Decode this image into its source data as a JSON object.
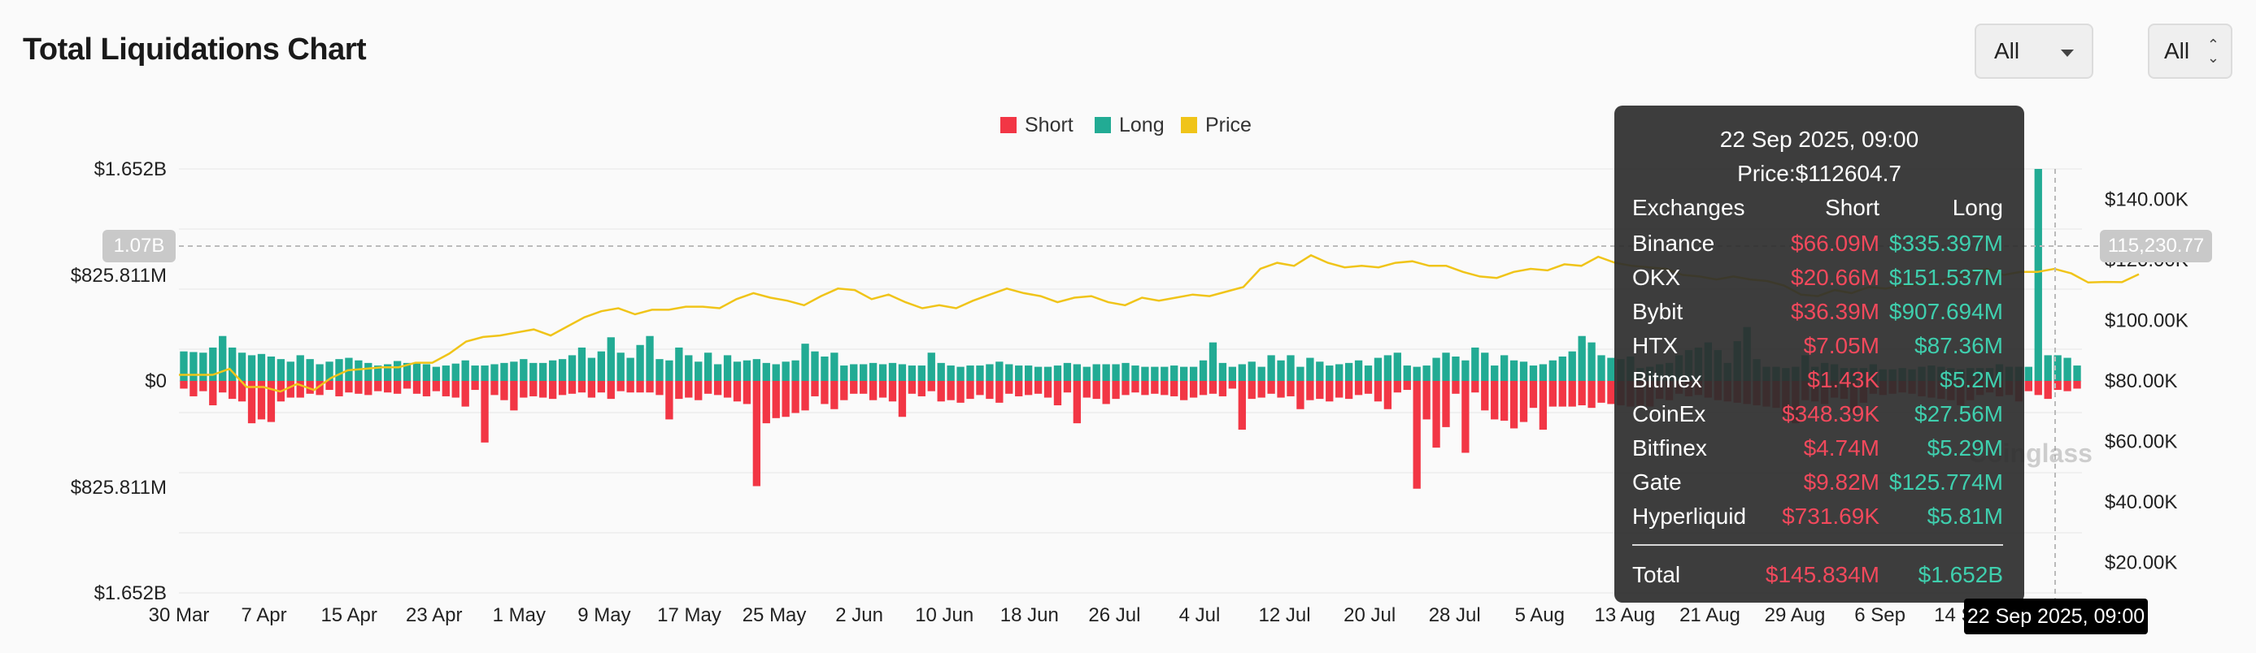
{
  "header": {
    "title": "Total Liquidations Chart"
  },
  "controls": {
    "filter1": "All",
    "filter2": "All"
  },
  "watermark": "Coinglass",
  "cursor": {
    "price_label": "115,230.77",
    "left_label": "1.07B",
    "x_label": "22 Sep 2025, 09:00"
  },
  "colors": {
    "short": "#f23645",
    "long": "#22ab94",
    "price": "#f0c419"
  },
  "tooltip": {
    "date": "22 Sep 2025, 09:00",
    "price": "Price:$112604.7",
    "headers": {
      "exchange": "Exchanges",
      "short": "Short",
      "long": "Long"
    },
    "rows": [
      {
        "exchange": "Binance",
        "short": "$66.09M",
        "long": "$335.397M"
      },
      {
        "exchange": "OKX",
        "short": "$20.66M",
        "long": "$151.537M"
      },
      {
        "exchange": "Bybit",
        "short": "$36.39M",
        "long": "$907.694M"
      },
      {
        "exchange": "HTX",
        "short": "$7.05M",
        "long": "$87.36M"
      },
      {
        "exchange": "Bitmex",
        "short": "$1.43K",
        "long": "$5.2M"
      },
      {
        "exchange": "CoinEx",
        "short": "$348.39K",
        "long": "$27.56M"
      },
      {
        "exchange": "Bitfinex",
        "short": "$4.74M",
        "long": "$5.29M"
      },
      {
        "exchange": "Gate",
        "short": "$9.82M",
        "long": "$125.774M"
      },
      {
        "exchange": "Hyperliquid",
        "short": "$731.69K",
        "long": "$5.81M"
      }
    ],
    "total": {
      "label": "Total",
      "short": "$145.834M",
      "long": "$1.652B"
    }
  },
  "chart_data": {
    "type": "bar",
    "legend": [
      "Short",
      "Long",
      "Price"
    ],
    "legend_position": "top-center",
    "grid": true,
    "y_left": {
      "ticks": [
        "$1.652B",
        "$825.811M",
        "$0",
        "$825.811M",
        "$1.652B"
      ],
      "range_musd": [
        -1652,
        1652
      ]
    },
    "y_right": {
      "ticks": [
        "$140.00K",
        "$120.00K",
        "$100.00K",
        "$80.00K",
        "$60.00K",
        "$40.00K",
        "$20.00K"
      ],
      "range": [
        10000,
        150000
      ]
    },
    "x_ticks": [
      "30 Mar",
      "7 Apr",
      "15 Apr",
      "23 Apr",
      "1 May",
      "9 May",
      "17 May",
      "25 May",
      "2 Jun",
      "10 Jun",
      "18 Jun",
      "26 Jul",
      "4 Jul",
      "12 Jul",
      "20 Jul",
      "28 Jul",
      "5 Aug",
      "13 Aug",
      "21 Aug",
      "29 Aug",
      "6 Sep",
      "14 Sep"
    ],
    "x_range": [
      "2025-03-30",
      "2025-09-25"
    ],
    "series": [
      {
        "name": "Long",
        "unit": "M USD",
        "values": [
          230,
          225,
          220,
          260,
          350,
          260,
          220,
          200,
          210,
          190,
          170,
          150,
          200,
          170,
          130,
          150,
          170,
          180,
          160,
          140,
          120,
          130,
          155,
          140,
          140,
          130,
          110,
          120,
          135,
          160,
          120,
          120,
          130,
          140,
          150,
          170,
          140,
          140,
          160,
          170,
          200,
          260,
          180,
          230,
          340,
          220,
          180,
          280,
          350,
          170,
          160,
          260,
          200,
          150,
          220,
          130,
          200,
          150,
          160,
          170,
          140,
          130,
          150,
          160,
          290,
          230,
          190,
          220,
          120,
          130,
          130,
          140,
          130,
          140,
          130,
          120,
          120,
          220,
          140,
          120,
          110,
          120,
          120,
          130,
          150,
          130,
          120,
          120,
          110,
          110,
          120,
          140,
          130,
          110,
          130,
          130,
          130,
          140,
          120,
          110,
          110,
          110,
          120,
          110,
          110,
          160,
          300,
          140,
          110,
          130,
          150,
          110,
          200,
          160,
          200,
          110,
          180,
          150,
          120,
          130,
          140,
          160,
          120,
          180,
          200,
          220,
          120,
          110,
          120,
          180,
          220,
          190,
          160,
          260,
          220,
          120,
          200,
          160,
          150,
          120,
          130,
          160,
          190,
          230,
          350,
          300,
          200,
          180,
          170,
          190,
          100,
          110,
          130,
          140,
          200,
          240,
          260,
          300,
          240,
          140,
          310,
          420,
          170,
          110,
          110,
          100,
          110,
          200,
          110,
          140,
          130,
          100,
          100,
          100,
          130,
          90,
          90,
          100,
          90,
          110,
          120,
          110,
          100,
          90,
          100,
          100,
          100,
          130,
          110,
          110,
          110,
          1652,
          200,
          200,
          180,
          120
        ]
      },
      {
        "name": "Short",
        "unit": "M USD",
        "values": [
          60,
          120,
          80,
          190,
          90,
          140,
          160,
          330,
          300,
          320,
          160,
          130,
          130,
          100,
          110,
          70,
          120,
          90,
          100,
          110,
          80,
          90,
          100,
          60,
          100,
          120,
          80,
          120,
          130,
          200,
          70,
          480,
          110,
          150,
          230,
          130,
          120,
          130,
          140,
          110,
          100,
          90,
          130,
          90,
          140,
          80,
          90,
          90,
          90,
          110,
          300,
          140,
          130,
          150,
          100,
          110,
          130,
          160,
          180,
          820,
          330,
          290,
          280,
          250,
          230,
          120,
          180,
          220,
          150,
          100,
          100,
          150,
          130,
          160,
          280,
          100,
          120,
          80,
          160,
          150,
          170,
          140,
          110,
          140,
          170,
          100,
          120,
          110,
          100,
          130,
          190,
          90,
          330,
          130,
          140,
          180,
          140,
          110,
          90,
          110,
          100,
          110,
          120,
          150,
          130,
          110,
          100,
          120,
          60,
          380,
          140,
          130,
          100,
          130,
          120,
          220,
          150,
          140,
          160,
          130,
          140,
          110,
          100,
          160,
          220,
          90,
          70,
          840,
          300,
          520,
          360,
          100,
          560,
          90,
          230,
          300,
          310,
          370,
          320,
          210,
          380,
          200,
          200,
          200,
          190,
          210,
          170,
          180,
          190,
          200,
          190,
          200,
          140,
          150,
          100,
          120,
          110,
          130,
          150,
          160,
          170,
          180,
          190,
          200,
          210,
          270,
          330,
          150,
          160,
          180,
          130,
          140,
          250,
          170,
          100,
          110,
          100,
          90,
          100,
          120,
          130,
          140,
          150,
          190,
          150,
          110,
          90,
          120,
          110,
          160,
          80,
          110,
          140,
          70,
          80,
          60
        ]
      },
      {
        "name": "Price",
        "unit": "USD",
        "values": [
          82000,
          82000,
          82000,
          84000,
          78000,
          78000,
          76500,
          79000,
          77000,
          81000,
          83500,
          84000,
          84500,
          84500,
          86000,
          86000,
          89000,
          93000,
          94500,
          95000,
          96000,
          97000,
          95000,
          98000,
          101000,
          103000,
          104000,
          102000,
          103500,
          103500,
          104500,
          104500,
          104000,
          107000,
          109000,
          107500,
          106500,
          105000,
          108000,
          110500,
          110000,
          107000,
          108500,
          106000,
          104000,
          105000,
          104000,
          106500,
          108500,
          110500,
          109000,
          108000,
          106000,
          107500,
          108000,
          106000,
          105000,
          107500,
          106500,
          107500,
          108500,
          108000,
          109500,
          111000,
          117000,
          119000,
          118000,
          121500,
          119000,
          117500,
          118000,
          117500,
          119000,
          119500,
          118000,
          118000,
          116000,
          114500,
          114000,
          116000,
          117000,
          116500,
          118500,
          118000,
          121000,
          119000,
          118000,
          117500,
          117000,
          115000,
          114500,
          113500,
          114500,
          113500,
          113000,
          111500,
          108500,
          108000,
          110000,
          109000,
          111000,
          110500,
          111500,
          112000,
          112500,
          114500,
          115500,
          117000,
          115000,
          116000,
          116000,
          117000,
          115500,
          112500,
          112700,
          112600,
          115230
        ]
      }
    ]
  }
}
